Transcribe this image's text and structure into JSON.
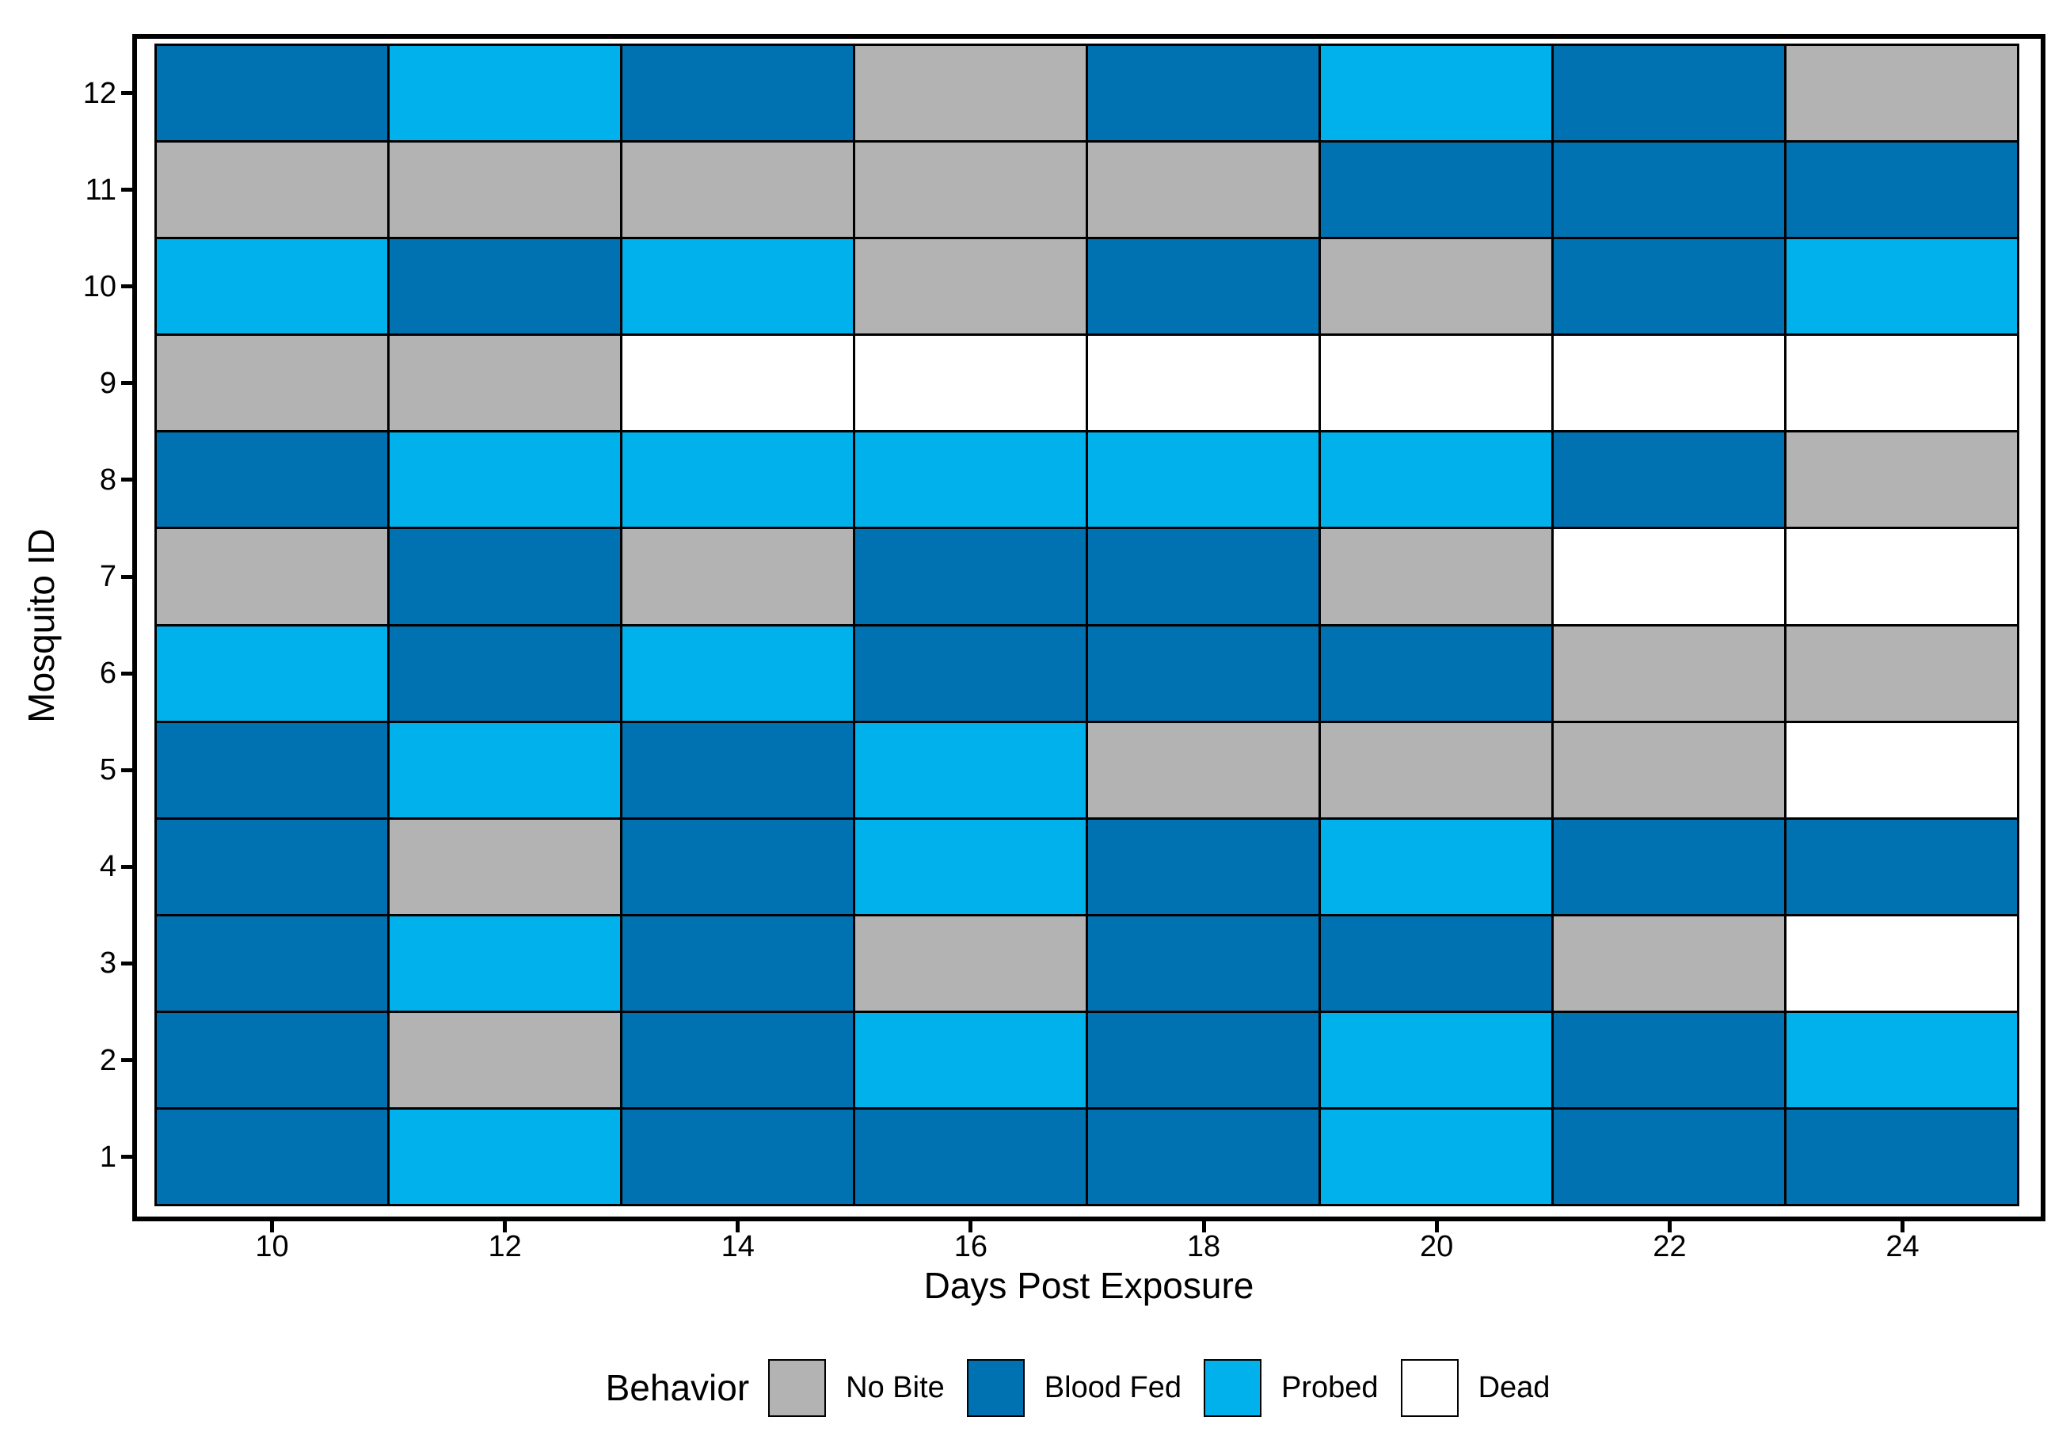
{
  "chart_data": {
    "type": "heatmap",
    "title": "",
    "xlabel": "Days Post Exposure",
    "ylabel": "Mosquito ID",
    "x_ticks": [
      "10",
      "12",
      "14",
      "16",
      "18",
      "20",
      "22",
      "24"
    ],
    "x_values": [
      10,
      12,
      14,
      16,
      18,
      20,
      22,
      24
    ],
    "y_ticks_top_to_bottom": [
      "12",
      "11",
      "10",
      "9",
      "8",
      "7",
      "6",
      "5",
      "4",
      "3",
      "2",
      "1"
    ],
    "grid_on": false,
    "legend": {
      "title": "Behavior",
      "position": "bottom-center",
      "entries": [
        {
          "label": "No Bite",
          "color": "#B3B3B3"
        },
        {
          "label": "Blood Fed",
          "color": "#0072B2"
        },
        {
          "label": "Probed",
          "color": "#00B1EB"
        },
        {
          "label": "Dead",
          "color": "#FFFFFF"
        }
      ]
    },
    "colors": {
      "No Bite": "#B3B3B3",
      "Blood Fed": "#0072B2",
      "Probed": "#00B1EB",
      "Dead": "#FFFFFF",
      "cell_border": "#000000"
    },
    "rows_top_to_bottom": [
      {
        "mosquito_id": 12,
        "behaviors_by_day": [
          "Blood Fed",
          "Probed",
          "Blood Fed",
          "No Bite",
          "Blood Fed",
          "Probed",
          "Blood Fed",
          "No Bite"
        ]
      },
      {
        "mosquito_id": 11,
        "behaviors_by_day": [
          "No Bite",
          "No Bite",
          "No Bite",
          "No Bite",
          "No Bite",
          "Blood Fed",
          "Blood Fed",
          "Blood Fed"
        ]
      },
      {
        "mosquito_id": 10,
        "behaviors_by_day": [
          "Probed",
          "Blood Fed",
          "Probed",
          "No Bite",
          "Blood Fed",
          "No Bite",
          "Blood Fed",
          "Probed"
        ]
      },
      {
        "mosquito_id": 9,
        "behaviors_by_day": [
          "No Bite",
          "No Bite",
          "Dead",
          "Dead",
          "Dead",
          "Dead",
          "Dead",
          "Dead"
        ]
      },
      {
        "mosquito_id": 8,
        "behaviors_by_day": [
          "Blood Fed",
          "Probed",
          "Probed",
          "Probed",
          "Probed",
          "Probed",
          "Blood Fed",
          "No Bite"
        ]
      },
      {
        "mosquito_id": 7,
        "behaviors_by_day": [
          "No Bite",
          "Blood Fed",
          "No Bite",
          "Blood Fed",
          "Blood Fed",
          "No Bite",
          "Dead",
          "Dead"
        ]
      },
      {
        "mosquito_id": 6,
        "behaviors_by_day": [
          "Probed",
          "Blood Fed",
          "Probed",
          "Blood Fed",
          "Blood Fed",
          "Blood Fed",
          "No Bite",
          "No Bite"
        ]
      },
      {
        "mosquito_id": 5,
        "behaviors_by_day": [
          "Blood Fed",
          "Probed",
          "Blood Fed",
          "Probed",
          "No Bite",
          "No Bite",
          "No Bite",
          "Dead"
        ]
      },
      {
        "mosquito_id": 4,
        "behaviors_by_day": [
          "Blood Fed",
          "No Bite",
          "Blood Fed",
          "Probed",
          "Blood Fed",
          "Probed",
          "Blood Fed",
          "Blood Fed"
        ]
      },
      {
        "mosquito_id": 3,
        "behaviors_by_day": [
          "Blood Fed",
          "Probed",
          "Blood Fed",
          "No Bite",
          "Blood Fed",
          "Blood Fed",
          "No Bite",
          "Dead"
        ]
      },
      {
        "mosquito_id": 2,
        "behaviors_by_day": [
          "Blood Fed",
          "No Bite",
          "Blood Fed",
          "Probed",
          "Blood Fed",
          "Probed",
          "Blood Fed",
          "Probed"
        ]
      },
      {
        "mosquito_id": 1,
        "behaviors_by_day": [
          "Blood Fed",
          "Probed",
          "Blood Fed",
          "Blood Fed",
          "Blood Fed",
          "Probed",
          "Blood Fed",
          "Blood Fed"
        ]
      }
    ]
  }
}
